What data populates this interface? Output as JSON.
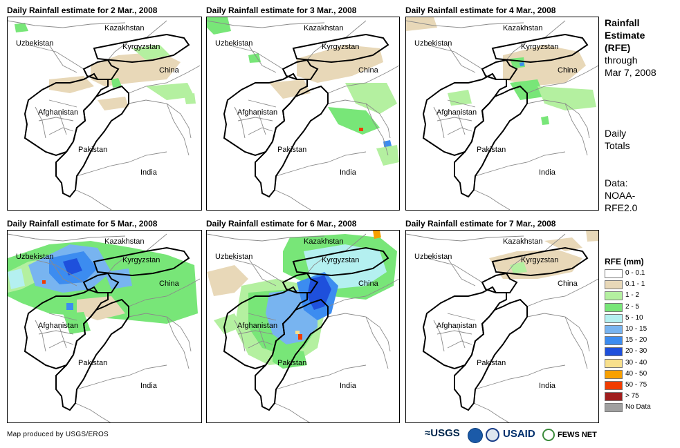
{
  "panels": [
    {
      "title": "Daily Rainfall estimate for 2 Mar., 2008",
      "rain": "p1"
    },
    {
      "title": "Daily Rainfall estimate for 3 Mar., 2008",
      "rain": "p2"
    },
    {
      "title": "Daily Rainfall estimate for 4 Mar., 2008",
      "rain": "p3"
    },
    {
      "title": "Daily Rainfall estimate for 5 Mar., 2008",
      "rain": "p4"
    },
    {
      "title": "Daily Rainfall estimate for 6 Mar., 2008",
      "rain": "p5"
    },
    {
      "title": "Daily Rainfall estimate for 7 Mar., 2008",
      "rain": "p6"
    }
  ],
  "map_labels": {
    "kazakhstan": "Kazakhstan",
    "uzbekistan": "Uzbekistan",
    "kyrgyzstan": "Kyrgyzstan",
    "china": "China",
    "afghanistan": "Afghanistan",
    "pakistan": "Pakistan",
    "india": "India"
  },
  "side": {
    "title_line1": "Rainfall",
    "title_line2": "Estimate",
    "title_line3": "(RFE)",
    "through": "through",
    "date": "Mar 7, 2008",
    "daily1": "Daily",
    "daily2": "Totals",
    "data1": "Data:",
    "data2": "NOAA-",
    "data3": "RFE2.0"
  },
  "legend": {
    "title": "RFE (mm)",
    "items": [
      {
        "label": "0 - 0.1",
        "color": "#ffffff"
      },
      {
        "label": "0.1 - 1",
        "color": "#e8d8b8"
      },
      {
        "label": "1 - 2",
        "color": "#b4f0a0"
      },
      {
        "label": "2 - 5",
        "color": "#78e678"
      },
      {
        "label": "5 - 10",
        "color": "#b4f0f0"
      },
      {
        "label": "10 - 15",
        "color": "#78b4f0"
      },
      {
        "label": "15 - 20",
        "color": "#3c8cf0"
      },
      {
        "label": "20 - 30",
        "color": "#1e50dc"
      },
      {
        "label": "30 - 40",
        "color": "#f8e08c"
      },
      {
        "label": "40 - 50",
        "color": "#f8a000"
      },
      {
        "label": "50 - 75",
        "color": "#f03c00"
      },
      {
        "label": "> 75",
        "color": "#a01e1e"
      },
      {
        "label": "No Data",
        "color": "#a0a0a0"
      }
    ]
  },
  "credit": "Map produced by USGS/EROS",
  "logos": {
    "usgs": "≈USGS",
    "usaid": "USAID",
    "fewsnet": "FEWS NET"
  }
}
